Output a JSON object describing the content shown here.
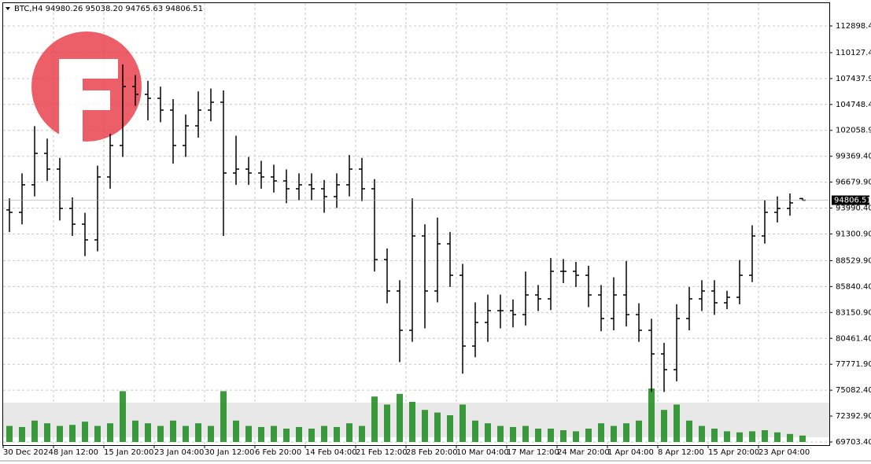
{
  "chart_data": {
    "type": "ohlc",
    "title": "BTC,H4  94980.26 95038.20 94765.63 94806.51",
    "color": "#000000",
    "volume_color": "#1a8a1a",
    "grid": true,
    "open": [
      93800,
      93545,
      96403,
      99669,
      98036,
      93953,
      92320,
      90687,
      97219,
      100486,
      106611,
      105794,
      105386,
      104161,
      100486,
      102527,
      104161,
      104977,
      97628,
      98036,
      97628,
      97219,
      96811,
      95995,
      96403,
      95995,
      95178,
      96403,
      98036,
      95995,
      88645,
      85379,
      81296,
      91095,
      85379,
      90279,
      87012,
      79663,
      82113,
      83337,
      83337,
      82929,
      84971,
      84562,
      87421,
      87421,
      87012,
      84971,
      82521,
      84971,
      82929,
      81296,
      78846,
      77213,
      82521,
      84562,
      85379,
      84154,
      84726,
      87012,
      91095,
      93545,
      93953,
      94980.26
    ],
    "high": [
      95000,
      97600,
      102500,
      101200,
      99200,
      95100,
      93500,
      98400,
      101700,
      108900,
      107800,
      107200,
      106600,
      105300,
      103700,
      106100,
      106400,
      106200,
      101500,
      99300,
      98900,
      98500,
      98000,
      97600,
      97600,
      96900,
      97600,
      99500,
      99200,
      97000,
      89800,
      86500,
      95000,
      92300,
      93000,
      91500,
      88200,
      84200,
      85000,
      85000,
      84500,
      87400,
      86000,
      88800,
      88700,
      88400,
      88000,
      86000,
      86800,
      88500,
      84100,
      82500,
      80000,
      84000,
      85800,
      86500,
      86500,
      85400,
      88600,
      92200,
      94800,
      95200,
      95500,
      95038.2
    ],
    "low": [
      91500,
      92300,
      95200,
      96800,
      92700,
      91100,
      89000,
      89500,
      96000,
      99300,
      104600,
      103100,
      102900,
      98600,
      99300,
      101300,
      103000,
      91100,
      96400,
      96400,
      96000,
      95600,
      94500,
      94800,
      94800,
      93500,
      94000,
      95200,
      94700,
      87400,
      84100,
      78000,
      80100,
      81500,
      84200,
      85800,
      76800,
      78500,
      80100,
      81500,
      81600,
      81800,
      83300,
      83400,
      86200,
      85800,
      83700,
      81200,
      81300,
      81700,
      80100,
      74900,
      74900,
      76000,
      81300,
      83300,
      82900,
      83500,
      84000,
      86300,
      90300,
      92500,
      93200,
      94765.63
    ],
    "close": [
      93545,
      96403,
      99669,
      98036,
      93953,
      92320,
      90687,
      97219,
      100486,
      106611,
      105794,
      105386,
      104161,
      100486,
      102527,
      104161,
      104977,
      97628,
      98036,
      97628,
      97219,
      96811,
      95995,
      96403,
      95995,
      95178,
      96403,
      98036,
      95995,
      88645,
      85379,
      81296,
      91095,
      85379,
      90279,
      87012,
      79663,
      82113,
      83337,
      83337,
      82929,
      84971,
      84562,
      87421,
      87421,
      87012,
      84971,
      82521,
      84971,
      82929,
      81296,
      78846,
      77213,
      82521,
      84562,
      85379,
      84154,
      84726,
      87012,
      91095,
      93545,
      93953,
      94526,
      94806.51
    ],
    "volume": [
      30,
      28,
      40,
      35,
      30,
      32,
      38,
      30,
      35,
      95,
      40,
      35,
      30,
      40,
      30,
      35,
      30,
      95,
      40,
      30,
      28,
      30,
      25,
      28,
      25,
      30,
      28,
      35,
      30,
      85,
      70,
      90,
      75,
      60,
      55,
      50,
      70,
      40,
      35,
      30,
      28,
      30,
      25,
      25,
      22,
      20,
      25,
      35,
      30,
      35,
      40,
      100,
      60,
      70,
      40,
      30,
      25,
      20,
      18,
      20,
      22,
      18,
      15,
      12
    ],
    "xlim": [
      0,
      64
    ],
    "xticks": [
      {
        "value": 0,
        "label": "30 Dec 2024"
      },
      {
        "value": 4,
        "label": "8 Jan 12:00"
      },
      {
        "value": 8,
        "label": "15 Jan 20:00"
      },
      {
        "value": 12,
        "label": "23 Jan 04:00"
      },
      {
        "value": 16,
        "label": "30 Jan 12:00"
      },
      {
        "value": 20,
        "label": "6 Feb 20:00"
      },
      {
        "value": 24,
        "label": "14 Feb 04:00"
      },
      {
        "value": 28,
        "label": "21 Feb 12:00"
      },
      {
        "value": 32,
        "label": "28 Feb 20:00"
      },
      {
        "value": 36,
        "label": "10 Mar 04:00"
      },
      {
        "value": 40,
        "label": "17 Mar 12:00"
      },
      {
        "value": 44,
        "label": "24 Mar 20:00"
      },
      {
        "value": 48,
        "label": "1 Apr 04:00"
      },
      {
        "value": 52,
        "label": "8 Apr 12:00"
      },
      {
        "value": 56,
        "label": "15 Apr 20:00"
      },
      {
        "value": 60,
        "label": "23 Apr 04:00"
      }
    ],
    "ylim": [
      69377,
      115348
    ],
    "yticks": [
      {
        "value": 69703.4,
        "label": "69703.40"
      },
      {
        "value": 72392.9,
        "label": "72392.90"
      },
      {
        "value": 75082.4,
        "label": "75082.40"
      },
      {
        "value": 77771.9,
        "label": "77771.90"
      },
      {
        "value": 80461.4,
        "label": "80461.40"
      },
      {
        "value": 83150.9,
        "label": "83150.90"
      },
      {
        "value": 85840.4,
        "label": "85840.40"
      },
      {
        "value": 88529.9,
        "label": "88529.90"
      },
      {
        "value": 91300.9,
        "label": "91300.90"
      },
      {
        "value": 93990.4,
        "label": "93990.40"
      },
      {
        "value": 96679.9,
        "label": "96679.90"
      },
      {
        "value": 99369.4,
        "label": "99369.40"
      },
      {
        "value": 102058.9,
        "label": "102058.90"
      },
      {
        "value": 104748.4,
        "label": "104748.40"
      },
      {
        "value": 107437.9,
        "label": "107437.90"
      },
      {
        "value": 110127.4,
        "label": "110127.40"
      },
      {
        "value": 112898.4,
        "label": "112898.40"
      }
    ]
  }
}
